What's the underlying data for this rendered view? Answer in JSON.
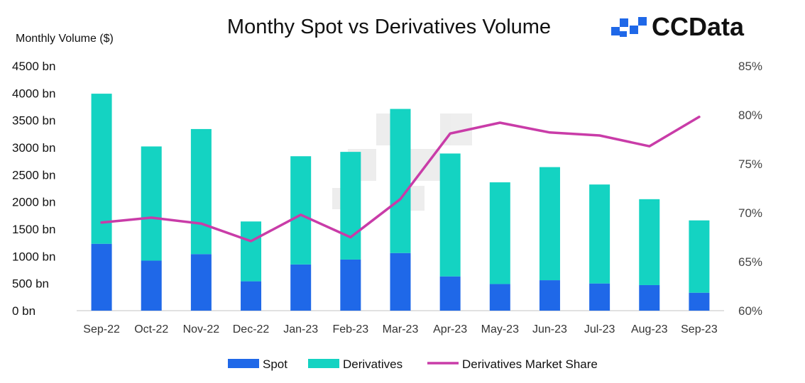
{
  "brand": {
    "name": "CCData"
  },
  "chart_data": {
    "type": "bar",
    "stacked": true,
    "title": "Monthy Spot vs Derivatives Volume",
    "ylabel": "Monthly Volume ($)",
    "y2label": "",
    "categories": [
      "Sep-22",
      "Oct-22",
      "Nov-22",
      "Dec-22",
      "Jan-23",
      "Feb-23",
      "Mar-23",
      "Apr-23",
      "May-23",
      "Jun-23",
      "Jul-23",
      "Aug-23",
      "Sep-23"
    ],
    "series": [
      {
        "name": "Spot",
        "kind": "bar",
        "axis": "left",
        "color": "#1f68e8",
        "values": [
          1230,
          920,
          1040,
          540,
          850,
          940,
          1060,
          630,
          490,
          560,
          500,
          470,
          330
        ]
      },
      {
        "name": "Derivatives",
        "kind": "bar",
        "axis": "left",
        "color": "#14d3c2",
        "values": [
          2760,
          2100,
          2300,
          1100,
          1990,
          1980,
          2650,
          2260,
          1870,
          2080,
          1820,
          1580,
          1330
        ]
      },
      {
        "name": "Derivatives Market Share",
        "kind": "line",
        "axis": "right",
        "color": "#c93ca8",
        "values": [
          69.0,
          69.5,
          68.9,
          67.1,
          69.8,
          67.5,
          71.4,
          78.1,
          79.2,
          78.2,
          77.9,
          76.8,
          79.8
        ]
      }
    ],
    "ylim": [
      0,
      4500
    ],
    "yticks": [
      "0 bn",
      "500 bn",
      "1000 bn",
      "1500 bn",
      "2000 bn",
      "2500 bn",
      "3000 bn",
      "3500 bn",
      "4000 bn",
      "4500 bn"
    ],
    "y2lim": [
      60,
      85
    ],
    "y2ticks": [
      "60%",
      "65%",
      "70%",
      "75%",
      "80%",
      "85%"
    ],
    "grid": false,
    "legend_position": "bottom"
  }
}
